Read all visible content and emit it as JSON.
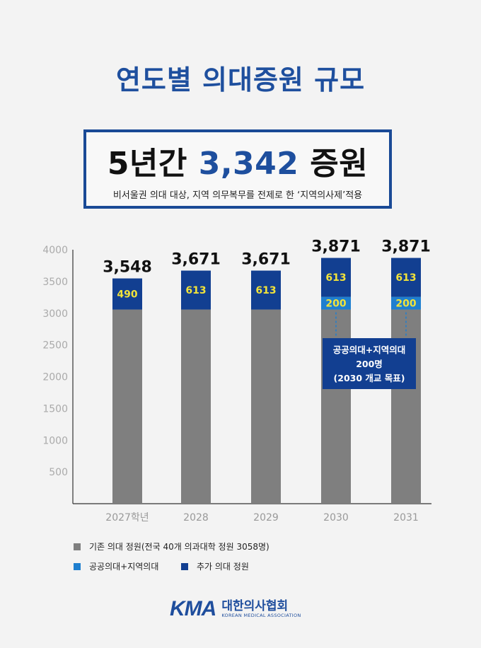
{
  "title": "연도별 의대증원 규모",
  "summary": {
    "prefix": "5년간 ",
    "number": "3,342",
    "suffix": " 증원",
    "subtitle": "비서울권 의대 대상, 지역 의무복무를 전제로 한 ‘지역의사제’적용"
  },
  "colors": {
    "base": "#7f7f7f",
    "public_regional": "#1f7fcf",
    "additional": "#123f91",
    "label_yellow": "#f2e33a",
    "title_blue": "#1e4f9e"
  },
  "chart_data": {
    "type": "bar",
    "stacked": true,
    "categories": [
      "2027학년",
      "2028",
      "2029",
      "2030",
      "2031"
    ],
    "ylim": [
      0,
      4000
    ],
    "yticks": [
      500,
      1000,
      1500,
      2000,
      2500,
      3000,
      3500,
      4000
    ],
    "grid": false,
    "series": [
      {
        "name": "기존 의대 정원(전국 40개 의과대학 정원 3058명)",
        "values": [
          3058,
          3058,
          3058,
          3058,
          3058
        ],
        "color": "#7f7f7f"
      },
      {
        "name": "공공의대+지역의대",
        "values": [
          0,
          0,
          0,
          200,
          200
        ],
        "color": "#1f7fcf"
      },
      {
        "name": "추가 의대 정원",
        "values": [
          490,
          613,
          613,
          613,
          613
        ],
        "color": "#123f91"
      }
    ],
    "totals": [
      "3,548",
      "3,671",
      "3,671",
      "3,871",
      "3,871"
    ],
    "segment_labels": {
      "public_regional": [
        "",
        "",
        "",
        "200",
        "200"
      ],
      "additional": [
        "490",
        "613",
        "613",
        "613",
        "613"
      ]
    },
    "annotation": {
      "lines": [
        "공공의대+지역의대",
        "200명",
        "(2030 개교 목표)"
      ]
    }
  },
  "legend": {
    "base": "기존 의대 정원(전국 40개 의과대학 정원 3058명)",
    "public_regional": "공공의대+지역의대",
    "additional": "추가 의대 정원"
  },
  "logo": {
    "mark": "KMA",
    "name_kr": "대한의사협회",
    "name_en": "KOREAN MEDICAL ASSOCIATION"
  }
}
